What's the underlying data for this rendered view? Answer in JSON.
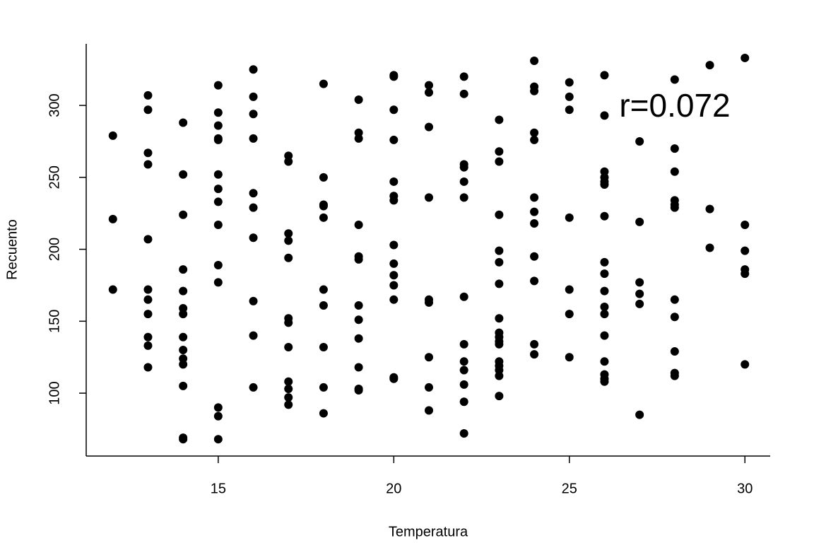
{
  "chart_data": {
    "type": "scatter",
    "xlabel": "Temperatura",
    "ylabel": "Recuento",
    "annotation": "r=0.072",
    "color": "#000000",
    "xlim": [
      11.24,
      30.72
    ],
    "ylim": [
      56.3,
      342.8
    ],
    "xticks": [
      15,
      20,
      25,
      30
    ],
    "yticks": [
      100,
      150,
      200,
      250,
      300
    ],
    "x": [
      12,
      12,
      12,
      13,
      13,
      13,
      13,
      13,
      13,
      13,
      13,
      13,
      13,
      13,
      14,
      14,
      14,
      14,
      14,
      14,
      14,
      14,
      14,
      14,
      14,
      14,
      14,
      14,
      15,
      15,
      15,
      15,
      15,
      15,
      15,
      15,
      15,
      15,
      15,
      15,
      15,
      15,
      16,
      16,
      16,
      16,
      16,
      16,
      16,
      16,
      16,
      16,
      17,
      17,
      17,
      17,
      17,
      17,
      17,
      17,
      17,
      17,
      17,
      17,
      18,
      18,
      18,
      18,
      18,
      18,
      18,
      18,
      18,
      18,
      19,
      19,
      19,
      19,
      19,
      19,
      19,
      19,
      19,
      19,
      19,
      19,
      20,
      20,
      20,
      20,
      20,
      20,
      20,
      20,
      20,
      20,
      20,
      20,
      20,
      20,
      21,
      21,
      21,
      21,
      21,
      21,
      21,
      21,
      21,
      22,
      22,
      22,
      22,
      22,
      22,
      22,
      22,
      22,
      22,
      22,
      22,
      22,
      23,
      23,
      23,
      23,
      23,
      23,
      23,
      23,
      23,
      23,
      23,
      23,
      23,
      23,
      23,
      23,
      23,
      24,
      24,
      24,
      24,
      24,
      24,
      24,
      24,
      24,
      24,
      24,
      24,
      25,
      25,
      25,
      25,
      25,
      25,
      25,
      26,
      26,
      26,
      26,
      26,
      26,
      26,
      26,
      26,
      26,
      26,
      26,
      26,
      26,
      26,
      26,
      26,
      27,
      27,
      27,
      27,
      27,
      27,
      28,
      28,
      28,
      28,
      28,
      28,
      28,
      28,
      28,
      28,
      28,
      29,
      29,
      29,
      30,
      30,
      30,
      30,
      30,
      30
    ],
    "y": [
      279,
      221,
      172,
      307,
      297,
      267,
      259,
      207,
      172,
      165,
      155,
      139,
      133,
      118,
      288,
      252,
      224,
      186,
      171,
      159,
      155,
      139,
      130,
      124,
      120,
      105,
      69,
      68,
      314,
      295,
      286,
      277,
      276,
      252,
      242,
      233,
      217,
      189,
      177,
      90,
      84,
      68,
      325,
      306,
      294,
      277,
      239,
      229,
      208,
      164,
      140,
      104,
      265,
      261,
      211,
      206,
      194,
      152,
      149,
      132,
      108,
      103,
      97,
      92,
      315,
      250,
      231,
      230,
      222,
      172,
      161,
      132,
      104,
      86,
      304,
      281,
      277,
      217,
      195,
      193,
      161,
      151,
      138,
      118,
      103,
      102,
      321,
      320,
      297,
      276,
      247,
      237,
      234,
      203,
      190,
      182,
      175,
      165,
      111,
      110,
      314,
      309,
      285,
      236,
      165,
      163,
      125,
      104,
      88,
      320,
      308,
      259,
      257,
      247,
      236,
      167,
      134,
      122,
      116,
      106,
      94,
      72,
      290,
      268,
      261,
      224,
      199,
      191,
      176,
      152,
      142,
      139,
      136,
      134,
      122,
      119,
      116,
      112,
      98,
      331,
      313,
      310,
      281,
      276,
      236,
      226,
      218,
      195,
      178,
      134,
      127,
      316,
      306,
      297,
      222,
      172,
      155,
      125,
      321,
      293,
      254,
      250,
      247,
      245,
      223,
      191,
      183,
      171,
      160,
      155,
      140,
      122,
      113,
      110,
      108,
      275,
      219,
      177,
      169,
      162,
      85,
      318,
      270,
      254,
      234,
      231,
      229,
      165,
      153,
      129,
      114,
      112,
      328,
      228,
      201,
      333,
      217,
      199,
      186,
      183,
      120
    ]
  }
}
